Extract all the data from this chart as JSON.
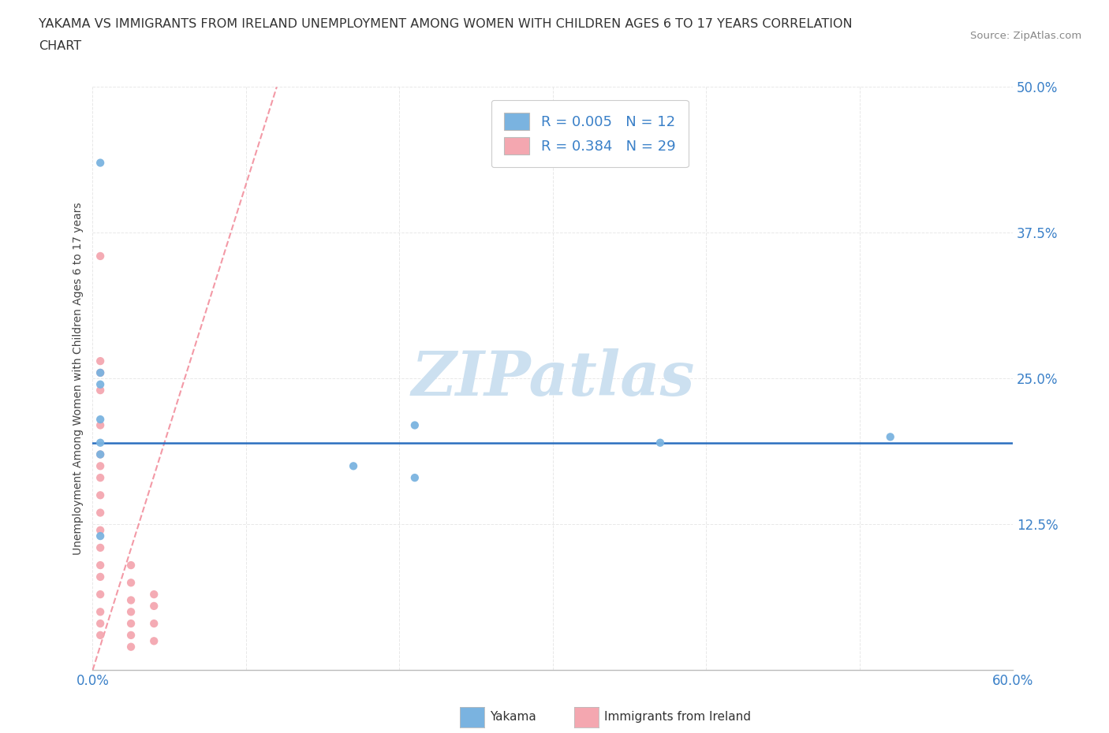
{
  "title_line1": "YAKAMA VS IMMIGRANTS FROM IRELAND UNEMPLOYMENT AMONG WOMEN WITH CHILDREN AGES 6 TO 17 YEARS CORRELATION",
  "title_line2": "CHART",
  "source": "Source: ZipAtlas.com",
  "ylabel": "Unemployment Among Women with Children Ages 6 to 17 years",
  "xlim": [
    0.0,
    0.6
  ],
  "ylim": [
    0.0,
    0.5
  ],
  "xticks": [
    0.0,
    0.1,
    0.2,
    0.3,
    0.4,
    0.5,
    0.6
  ],
  "xticklabels": [
    "0.0%",
    "",
    "",
    "",
    "",
    "",
    "60.0%"
  ],
  "yticks": [
    0.0,
    0.125,
    0.25,
    0.375,
    0.5
  ],
  "yticklabels": [
    "",
    "12.5%",
    "25.0%",
    "37.5%",
    "50.0%"
  ],
  "yakama_color": "#7ab3e0",
  "ireland_color": "#f4a7b0",
  "trendline_yakama_color": "#4a90d9",
  "trendline_ireland_color": "#f08090",
  "legend_R_yakama": "0.005",
  "legend_N_yakama": "12",
  "legend_R_ireland": "0.384",
  "legend_N_ireland": "29",
  "watermark": "ZIPatlas",
  "watermark_color": "#cce0f0",
  "background_color": "#ffffff",
  "grid_color": "#e8e8e8",
  "yakama_scatter_x": [
    0.005,
    0.005,
    0.005,
    0.005,
    0.005,
    0.005,
    0.17,
    0.21,
    0.21,
    0.37,
    0.52,
    0.005
  ],
  "yakama_scatter_y": [
    0.435,
    0.255,
    0.245,
    0.215,
    0.195,
    0.185,
    0.175,
    0.165,
    0.21,
    0.195,
    0.2,
    0.115
  ],
  "ireland_scatter_x": [
    0.005,
    0.005,
    0.005,
    0.005,
    0.005,
    0.005,
    0.005,
    0.005,
    0.005,
    0.005,
    0.005,
    0.005,
    0.005,
    0.005,
    0.005,
    0.005,
    0.005,
    0.005,
    0.025,
    0.025,
    0.025,
    0.025,
    0.025,
    0.025,
    0.025,
    0.04,
    0.04,
    0.04,
    0.04
  ],
  "ireland_scatter_y": [
    0.355,
    0.265,
    0.255,
    0.24,
    0.21,
    0.185,
    0.175,
    0.165,
    0.15,
    0.135,
    0.12,
    0.105,
    0.09,
    0.08,
    0.065,
    0.05,
    0.04,
    0.03,
    0.09,
    0.075,
    0.06,
    0.05,
    0.04,
    0.03,
    0.02,
    0.065,
    0.055,
    0.04,
    0.025
  ],
  "horizontal_line_y": 0.195,
  "horizontal_line_color": "#2a6ebf",
  "ireland_trendline_x0": 0.0,
  "ireland_trendline_y0": 0.0,
  "ireland_trendline_x1": 0.12,
  "ireland_trendline_y1": 0.5
}
